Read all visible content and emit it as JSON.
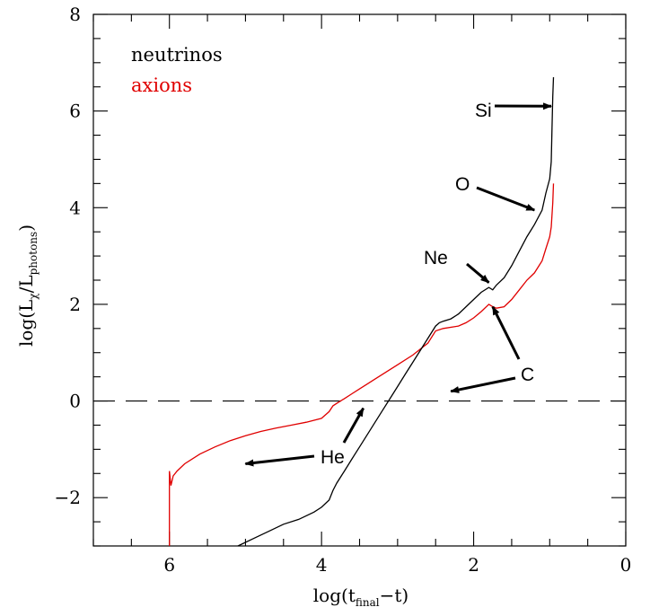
{
  "chart_data": {
    "type": "line",
    "xlabel": {
      "main": "log(t",
      "sub": "final",
      "tail": "−t)"
    },
    "ylabel": {
      "main": "log(L",
      "sub1": "χ",
      "mid": "/L",
      "sub2": "photons",
      "tail": ")"
    },
    "xlim": [
      7,
      0
    ],
    "ylim": [
      -3,
      8
    ],
    "x_ticks": [
      "6",
      "4",
      "2",
      "0"
    ],
    "y_ticks": [
      "−2",
      "0",
      "2",
      "4",
      "6",
      "8"
    ],
    "legend": [
      "neutrinos",
      "axions"
    ],
    "series": [
      {
        "name": "neutrinos",
        "color": "#000000",
        "x": [
          5.1,
          4.9,
          4.7,
          4.5,
          4.3,
          4.1,
          4.0,
          3.9,
          3.85,
          3.8,
          3.7,
          3.6,
          3.5,
          3.4,
          3.3,
          3.2,
          3.1,
          3.0,
          2.9,
          2.8,
          2.7,
          2.6,
          2.5,
          2.45,
          2.4,
          2.3,
          2.2,
          2.1,
          2.0,
          1.9,
          1.8,
          1.75,
          1.7,
          1.6,
          1.5,
          1.4,
          1.3,
          1.2,
          1.1,
          1.05,
          1.0,
          0.98,
          0.97,
          0.96,
          0.95
        ],
        "y": [
          -3.0,
          -2.85,
          -2.7,
          -2.55,
          -2.45,
          -2.3,
          -2.2,
          -2.05,
          -1.85,
          -1.7,
          -1.45,
          -1.2,
          -0.95,
          -0.7,
          -0.45,
          -0.2,
          0.05,
          0.3,
          0.55,
          0.8,
          1.05,
          1.3,
          1.55,
          1.62,
          1.65,
          1.7,
          1.8,
          1.95,
          2.1,
          2.25,
          2.35,
          2.3,
          2.4,
          2.55,
          2.8,
          3.1,
          3.4,
          3.65,
          3.95,
          4.3,
          4.6,
          4.95,
          5.6,
          6.3,
          6.7
        ]
      },
      {
        "name": "axions",
        "color": "#e00000",
        "x": [
          6.0,
          6.0,
          5.98,
          5.95,
          5.9,
          5.8,
          5.6,
          5.4,
          5.2,
          5.0,
          4.8,
          4.6,
          4.4,
          4.2,
          4.0,
          3.9,
          3.85,
          3.8,
          3.7,
          3.6,
          3.5,
          3.4,
          3.3,
          3.2,
          3.0,
          2.8,
          2.6,
          2.5,
          2.4,
          2.2,
          2.1,
          2.0,
          1.9,
          1.8,
          1.75,
          1.7,
          1.6,
          1.5,
          1.4,
          1.3,
          1.2,
          1.1,
          1.05,
          1.0,
          0.98,
          0.96,
          0.95
        ],
        "y": [
          -3.0,
          -1.45,
          -1.75,
          -1.55,
          -1.45,
          -1.3,
          -1.1,
          -0.95,
          -0.82,
          -0.72,
          -0.63,
          -0.56,
          -0.5,
          -0.44,
          -0.36,
          -0.22,
          -0.1,
          -0.05,
          0.05,
          0.15,
          0.25,
          0.35,
          0.45,
          0.55,
          0.75,
          0.95,
          1.2,
          1.45,
          1.5,
          1.55,
          1.62,
          1.72,
          1.85,
          2.0,
          1.95,
          1.92,
          1.95,
          2.1,
          2.3,
          2.5,
          2.65,
          2.9,
          3.15,
          3.4,
          3.6,
          4.1,
          4.5
        ]
      }
    ],
    "reference_line": {
      "y": 0,
      "style": "dashed"
    },
    "annotations": [
      {
        "label": "Si",
        "pointer_x": 0.98,
        "pointer_y": 6.1
      },
      {
        "label": "O",
        "pointer_x": 1.2,
        "pointer_y": 3.95
      },
      {
        "label": "Ne",
        "pointer_x": 1.8,
        "pointer_y": 2.45
      },
      {
        "label": "C",
        "pointer_x": 1.75,
        "pointer_y": 1.95
      },
      {
        "label": "C",
        "pointer_x": 2.3,
        "pointer_y": 0.2
      },
      {
        "label": "He",
        "pointer_x": 3.45,
        "pointer_y": -0.15
      },
      {
        "label": "He",
        "pointer_x": 5.0,
        "pointer_y": -1.3
      }
    ],
    "grid": false,
    "legend_placement": "top-left"
  }
}
